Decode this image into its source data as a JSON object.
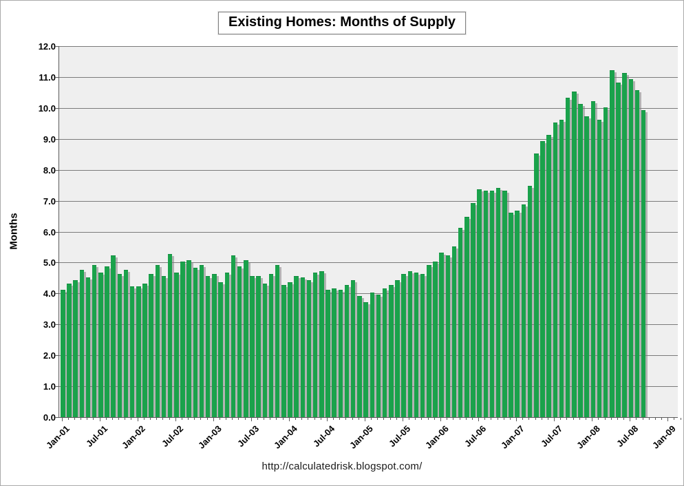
{
  "page": {
    "footer_url": "http://calculatedrisk.blogspot.com/"
  },
  "chart_data": {
    "type": "bar",
    "title": "Existing Homes: Months of Supply",
    "xlabel": "",
    "ylabel": "Months",
    "ylim": [
      0,
      12
    ],
    "ytick_step": 1.0,
    "ytick_labels": [
      "0.0",
      "1.0",
      "2.0",
      "3.0",
      "4.0",
      "5.0",
      "6.0",
      "7.0",
      "8.0",
      "9.0",
      "10.0",
      "11.0",
      "12.0"
    ],
    "xtick_labels": [
      "Jan-01",
      "Jul-01",
      "Jan-02",
      "Jul-02",
      "Jan-03",
      "Jul-03",
      "Jan-04",
      "Jul-04",
      "Jan-05",
      "Jul-05",
      "Jan-06",
      "Jul-06",
      "Jan-07",
      "Jul-07",
      "Jan-08",
      "Jul-08",
      "Jan-09"
    ],
    "xtick_every_n_months": 6,
    "x_axis_extra_empty_months": 5,
    "grid": true,
    "legend_position": "none",
    "plot_bg_color": "#efefef",
    "bar_color": "#1aa24b",
    "bar_shadow_color": "#9a9a9a",
    "gridline_color": "#7a7a7a",
    "categories": [
      "Jan-01",
      "Feb-01",
      "Mar-01",
      "Apr-01",
      "May-01",
      "Jun-01",
      "Jul-01",
      "Aug-01",
      "Sep-01",
      "Oct-01",
      "Nov-01",
      "Dec-01",
      "Jan-02",
      "Feb-02",
      "Mar-02",
      "Apr-02",
      "May-02",
      "Jun-02",
      "Jul-02",
      "Aug-02",
      "Sep-02",
      "Oct-02",
      "Nov-02",
      "Dec-02",
      "Jan-03",
      "Feb-03",
      "Mar-03",
      "Apr-03",
      "May-03",
      "Jun-03",
      "Jul-03",
      "Aug-03",
      "Sep-03",
      "Oct-03",
      "Nov-03",
      "Dec-03",
      "Jan-04",
      "Feb-04",
      "Mar-04",
      "Apr-04",
      "May-04",
      "Jun-04",
      "Jul-04",
      "Aug-04",
      "Sep-04",
      "Oct-04",
      "Nov-04",
      "Dec-04",
      "Jan-05",
      "Feb-05",
      "Mar-05",
      "Apr-05",
      "May-05",
      "Jun-05",
      "Jul-05",
      "Aug-05",
      "Sep-05",
      "Oct-05",
      "Nov-05",
      "Dec-05",
      "Jan-06",
      "Feb-06",
      "Mar-06",
      "Apr-06",
      "May-06",
      "Jun-06",
      "Jul-06",
      "Aug-06",
      "Sep-06",
      "Oct-06",
      "Nov-06",
      "Dec-06",
      "Jan-07",
      "Feb-07",
      "Mar-07",
      "Apr-07",
      "May-07",
      "Jun-07",
      "Jul-07",
      "Aug-07",
      "Sep-07",
      "Oct-07",
      "Nov-07",
      "Dec-07",
      "Jan-08",
      "Feb-08",
      "Mar-08",
      "Apr-08",
      "May-08",
      "Jun-08",
      "Jul-08",
      "Aug-08",
      "Sep-08"
    ],
    "values": [
      4.1,
      4.3,
      4.4,
      4.75,
      4.5,
      4.9,
      4.65,
      4.85,
      5.2,
      4.6,
      4.75,
      4.2,
      4.2,
      4.3,
      4.6,
      4.9,
      4.55,
      5.25,
      4.65,
      5.0,
      5.05,
      4.8,
      4.9,
      4.55,
      4.6,
      4.35,
      4.65,
      5.2,
      4.85,
      5.05,
      4.55,
      4.55,
      4.3,
      4.6,
      4.9,
      4.25,
      4.35,
      4.55,
      4.5,
      4.4,
      4.65,
      4.7,
      4.1,
      4.15,
      4.1,
      4.25,
      4.4,
      3.9,
      3.7,
      4.0,
      3.95,
      4.15,
      4.25,
      4.4,
      4.6,
      4.7,
      4.65,
      4.6,
      4.9,
      5.0,
      5.3,
      5.2,
      5.5,
      6.1,
      6.45,
      6.9,
      7.35,
      7.3,
      7.3,
      7.4,
      7.3,
      6.6,
      6.65,
      6.85,
      7.45,
      8.5,
      8.9,
      9.1,
      9.5,
      9.6,
      10.3,
      10.5,
      10.1,
      9.7,
      10.2,
      9.6,
      10.0,
      11.2,
      10.8,
      11.1,
      10.9,
      10.55,
      9.9
    ]
  }
}
